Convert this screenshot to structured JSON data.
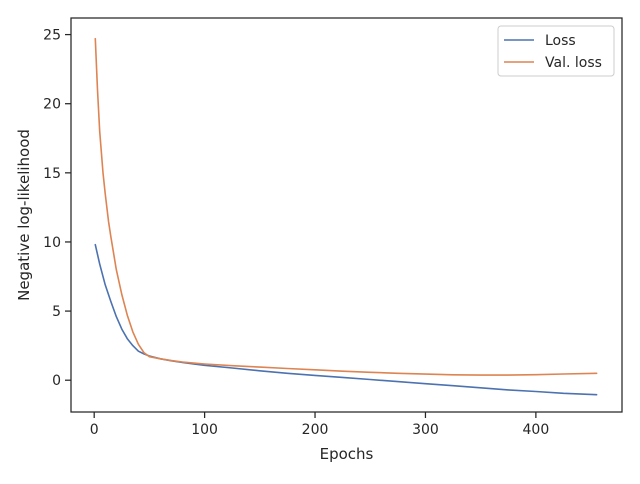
{
  "chart_data": {
    "type": "line",
    "title": "",
    "xlabel": "Epochs",
    "ylabel": "Negative log-likelihood",
    "xlim": [
      -21,
      478
    ],
    "ylim": [
      -2.3,
      26.2
    ],
    "xticks": [
      0,
      100,
      200,
      300,
      400
    ],
    "yticks": [
      0,
      5,
      10,
      15,
      20,
      25
    ],
    "grid": false,
    "legend": "top-right",
    "series": [
      {
        "name": "Loss",
        "color": "#4c72b0",
        "x": [
          1,
          5,
          10,
          15,
          20,
          25,
          30,
          35,
          40,
          45,
          50,
          60,
          70,
          80,
          90,
          100,
          125,
          150,
          175,
          200,
          225,
          250,
          275,
          300,
          325,
          350,
          375,
          400,
          425,
          455
        ],
        "y": [
          9.8,
          8.4,
          6.9,
          5.7,
          4.6,
          3.7,
          3.0,
          2.5,
          2.1,
          1.9,
          1.75,
          1.55,
          1.4,
          1.28,
          1.18,
          1.08,
          0.88,
          0.68,
          0.5,
          0.35,
          0.2,
          0.05,
          -0.1,
          -0.25,
          -0.4,
          -0.55,
          -0.7,
          -0.82,
          -0.95,
          -1.05
        ]
      },
      {
        "name": "Val. loss",
        "color": "#dd8452",
        "x": [
          1,
          3,
          5,
          8,
          10,
          13,
          15,
          20,
          25,
          30,
          35,
          40,
          45,
          50,
          60,
          70,
          80,
          90,
          100,
          125,
          150,
          175,
          200,
          225,
          250,
          275,
          300,
          325,
          350,
          375,
          400,
          425,
          455
        ],
        "y": [
          24.7,
          21.0,
          18.0,
          15.0,
          13.5,
          11.5,
          10.4,
          8.0,
          6.2,
          4.7,
          3.5,
          2.6,
          2.0,
          1.7,
          1.55,
          1.42,
          1.32,
          1.24,
          1.17,
          1.05,
          0.95,
          0.85,
          0.75,
          0.65,
          0.57,
          0.5,
          0.44,
          0.39,
          0.37,
          0.37,
          0.4,
          0.45,
          0.5
        ]
      }
    ]
  }
}
